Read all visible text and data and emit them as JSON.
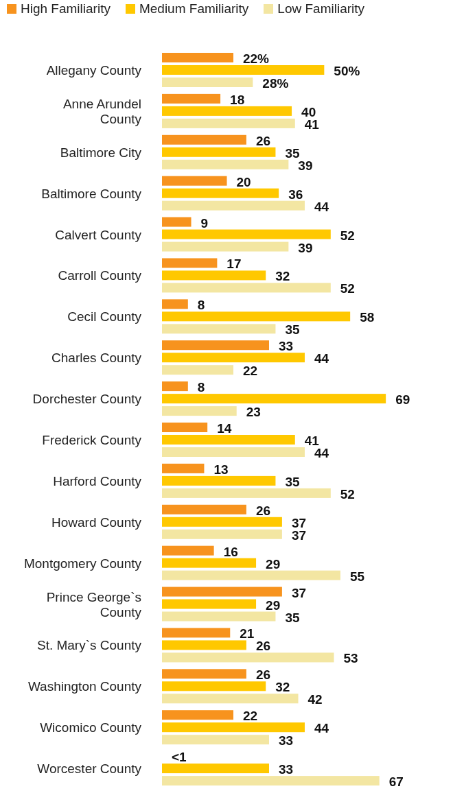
{
  "chart_data": {
    "type": "bar",
    "orientation": "horizontal",
    "legend": "top",
    "data_labels": true,
    "categories": [
      "Allegany County",
      "Anne Arundel County",
      "Baltimore City",
      "Baltimore County",
      "Calvert County",
      "Carroll County",
      "Cecil County",
      "Charles County",
      "Dorchester County",
      "Frederick County",
      "Harford County",
      "Howard County",
      "Montgomery County",
      "Prince George`s County",
      "St. Mary`s County",
      "Washington County",
      "Wicomico County",
      "Worcester County"
    ],
    "series": [
      {
        "name": "High Familiarity",
        "color": "#f7931e",
        "values": [
          22,
          18,
          26,
          20,
          9,
          17,
          8,
          33,
          8,
          14,
          13,
          26,
          16,
          37,
          21,
          26,
          22,
          0
        ],
        "value_labels": [
          "22%",
          "18",
          "26",
          "20",
          "9",
          "17",
          "8",
          "33",
          "8",
          "14",
          "13",
          "26",
          "16",
          "37",
          "21",
          "26",
          "22",
          "<1"
        ]
      },
      {
        "name": "Medium Familiarity",
        "color": "#ffc800",
        "values": [
          50,
          40,
          35,
          36,
          52,
          32,
          58,
          44,
          69,
          41,
          35,
          37,
          29,
          29,
          26,
          32,
          44,
          33
        ],
        "value_labels": [
          "50%",
          "40",
          "35",
          "36",
          "52",
          "32",
          "58",
          "44",
          "69",
          "41",
          "35",
          "37",
          "29",
          "29",
          "26",
          "32",
          "44",
          "33"
        ]
      },
      {
        "name": "Low Familiarity",
        "color": "#f3e6a2",
        "values": [
          28,
          41,
          39,
          44,
          39,
          52,
          35,
          22,
          23,
          44,
          52,
          37,
          55,
          35,
          53,
          42,
          33,
          67
        ],
        "value_labels": [
          "28%",
          "41",
          "39",
          "44",
          "39",
          "52",
          "35",
          "22",
          "23",
          "44",
          "52",
          "37",
          "55",
          "35",
          "53",
          "42",
          "33",
          "67"
        ]
      }
    ]
  }
}
